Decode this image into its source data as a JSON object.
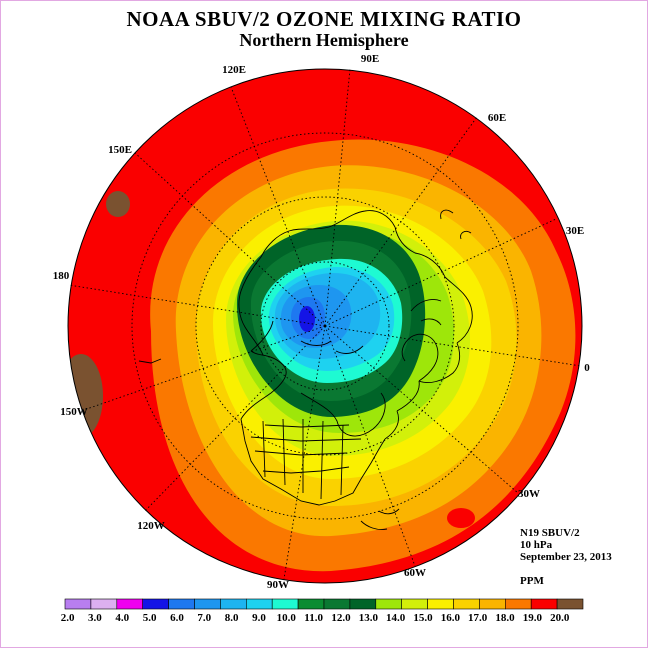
{
  "title": "NOAA SBUV/2 OZONE MIXING RATIO",
  "subtitle": "Northern Hemisphere",
  "longitude_labels": [
    "90E",
    "60E",
    "30E",
    "0",
    "30W",
    "60W",
    "90W",
    "120W",
    "150W",
    "180",
    "150E",
    "120E"
  ],
  "info": {
    "instrument": "N19 SBUV/2",
    "pressure": "10 hPa",
    "date": "September 23, 2013",
    "units": "PPM"
  },
  "legend": {
    "ticks": [
      "2.0",
      "3.0",
      "4.0",
      "5.0",
      "6.0",
      "7.0",
      "8.0",
      "9.0",
      "10.0",
      "11.0",
      "12.0",
      "13.0",
      "14.0",
      "15.0",
      "16.0",
      "17.0",
      "18.0",
      "19.0",
      "20.0"
    ],
    "colors": [
      "#b87ef0",
      "#dcb0f0",
      "#f000f0",
      "#1414e6",
      "#1e78f0",
      "#1e96f0",
      "#1eb4f0",
      "#1ed2f0",
      "#1efad2",
      "#0a8c32",
      "#0a7832",
      "#006428",
      "#9ee60a",
      "#d2f00a",
      "#faf000",
      "#fad200",
      "#fab400",
      "#fa7800",
      "#fa0000",
      "#7a5230"
    ]
  },
  "ozone_field": {
    "minimum_region_value": 6.0,
    "maximum_region_value": 20.0,
    "description_bands": [
      "6.0",
      "7.0",
      "8.0",
      "9.0",
      "10.0",
      "11.0",
      "12.0",
      "13.0",
      "14.0",
      "15.0",
      "16.0",
      "17.0",
      "18.0",
      "19.0",
      "20.0"
    ]
  }
}
